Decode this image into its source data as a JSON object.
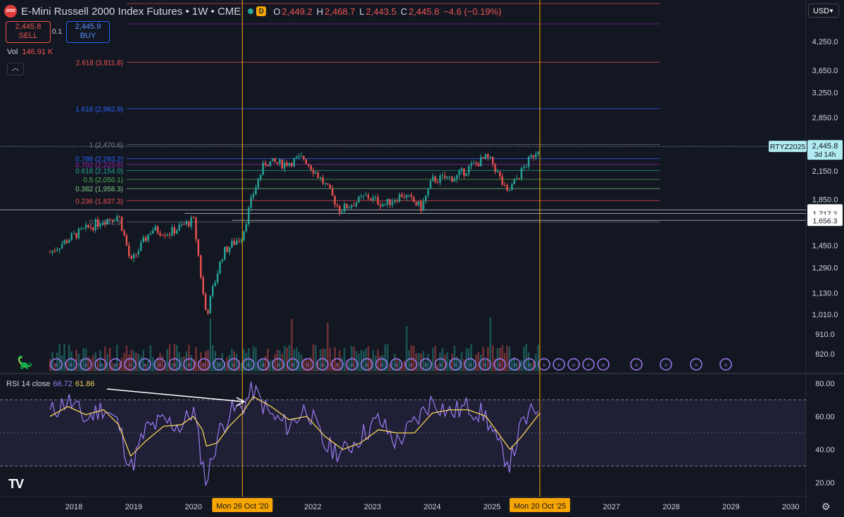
{
  "header": {
    "logo_text": "2000",
    "title": "E-Mini Russell 2000 Index Futures • 1W • CME",
    "badge": "D",
    "open_label": "O",
    "open": "2,449.2",
    "high_label": "H",
    "high": "2,468.7",
    "low_label": "L",
    "low": "2,443.5",
    "close_label": "C",
    "close": "2,445.8",
    "change": "−4.6 (−0.19%)"
  },
  "trade": {
    "sell_price": "2,445.8",
    "sell_label": "SELL",
    "spread": "0.1",
    "buy_price": "2,445.9",
    "buy_label": "BUY"
  },
  "volume": {
    "label": "Vol",
    "value": "146.91 K"
  },
  "currency": "USD",
  "rsi": {
    "label": "RSI 14 close",
    "value": "66.72",
    "ma_value": "61.86"
  },
  "colors": {
    "background": "#131722",
    "up": "#26a69a",
    "down": "#ef5350",
    "rsi": "#7e57c2",
    "rsi_ma": "#f5d35a",
    "highlight": "#f7a600"
  },
  "chart_data": [
    {
      "type": "candlestick",
      "price_axis": [
        "4,250.0",
        "3,650.0",
        "3,250.0",
        "2,850.0",
        "2,150.0",
        "1,850.0",
        "1,450.0",
        "1,290.0",
        "1,130.0",
        "1,010.0",
        "910.0",
        "820.0"
      ],
      "price_axis_values": [
        4250,
        3650,
        3250,
        2850,
        2150,
        1850,
        1450,
        1290,
        1130,
        1010,
        910,
        820
      ],
      "scale": "log",
      "time_axis": [
        "2018",
        "2019",
        "2020",
        "2022",
        "2023",
        "2024",
        "2025",
        "2027",
        "2028",
        "2029",
        "2030"
      ],
      "time_axis_years": [
        2018,
        2019,
        2020,
        2022,
        2023,
        2024,
        2025,
        2027,
        2028,
        2029,
        2030
      ],
      "highlight_dates": [
        "Mon 26 Oct '20",
        "Mon 20 Oct '25"
      ],
      "highlight_date_years": [
        2020.82,
        2025.8
      ],
      "fib_levels": [
        {
          "label": "2.618 (3,811.8)",
          "price": 3811.8,
          "color": "#ef5350"
        },
        {
          "label": "1.618 (2,982.9)",
          "price": 2982.9,
          "color": "#2962ff"
        },
        {
          "label": "1 (2,470.6)",
          "price": 2470.6,
          "color": "#787b86"
        },
        {
          "label": "0.786 (2,293.2)",
          "price": 2293.2,
          "color": "#2962ff"
        },
        {
          "label": "0.702 (2,223.6)",
          "price": 2223.6,
          "color": "#9c27b0"
        },
        {
          "label": "0.618 (2,154.0)",
          "price": 2154.0,
          "color": "#26a69a"
        },
        {
          "label": "0.5 (2,056.1)",
          "price": 2056.1,
          "color": "#4caf50"
        },
        {
          "label": "0.382 (1,958.3)",
          "price": 1958.3,
          "color": "#81c784"
        },
        {
          "label": "0.236 (1,837.3)",
          "price": 1837.3,
          "color": "#ef5350"
        },
        {
          "label": "0 (1,641.9)",
          "price": 1641.9,
          "color": "#787b86"
        }
      ],
      "horizontal_levels": [
        "1,750.4",
        "1,717.2",
        "1,656.3"
      ],
      "horizontal_level_values": [
        1750.4,
        1717.2,
        1656.3
      ],
      "symbol_tag": "RTYZ2025",
      "last_price": "2,445.8",
      "last_price_value": 2445.8,
      "countdown": "3d 14h",
      "price_series": {
        "years": [
          2017.6,
          2018.0,
          2018.5,
          2018.75,
          2018.95,
          2019.3,
          2019.6,
          2020.0,
          2020.15,
          2020.22,
          2020.5,
          2020.82,
          2021.0,
          2021.2,
          2021.5,
          2021.85,
          2022.2,
          2022.45,
          2022.7,
          2022.9,
          2023.2,
          2023.5,
          2023.82,
          2024.0,
          2024.4,
          2024.6,
          2024.9,
          2025.0,
          2025.25,
          2025.5,
          2025.8
        ],
        "close": [
          1400,
          1530,
          1660,
          1700,
          1320,
          1580,
          1550,
          1660,
          1150,
          1000,
          1400,
          1530,
          1900,
          2250,
          2230,
          2300,
          2000,
          1750,
          1820,
          1880,
          1800,
          1900,
          1770,
          2050,
          2080,
          2180,
          2300,
          2250,
          1900,
          2150,
          2450
        ]
      }
    },
    {
      "type": "line",
      "title": "RSI 14 close",
      "y_axis": [
        "80.00",
        "60.00",
        "40.00",
        "20.00"
      ],
      "y_axis_values": [
        80,
        60,
        40,
        20
      ],
      "band": [
        30,
        70
      ],
      "years": [
        2017.6,
        2017.9,
        2018.2,
        2018.5,
        2018.75,
        2018.95,
        2019.2,
        2019.5,
        2019.8,
        2020.0,
        2020.15,
        2020.22,
        2020.4,
        2020.6,
        2020.82,
        2021.0,
        2021.3,
        2021.6,
        2021.9,
        2022.2,
        2022.5,
        2022.8,
        2023.1,
        2023.4,
        2023.7,
        2024.0,
        2024.3,
        2024.6,
        2024.9,
        2025.1,
        2025.3,
        2025.5,
        2025.8
      ],
      "rsi": [
        62,
        70,
        58,
        66,
        55,
        28,
        52,
        57,
        54,
        64,
        32,
        20,
        48,
        62,
        66,
        76,
        60,
        54,
        66,
        42,
        38,
        48,
        58,
        44,
        56,
        70,
        62,
        66,
        60,
        42,
        32,
        55,
        67
      ],
      "rsi_ma": [
        60,
        66,
        61,
        64,
        55,
        36,
        45,
        54,
        55,
        60,
        52,
        42,
        44,
        54,
        62,
        72,
        66,
        58,
        60,
        48,
        40,
        44,
        52,
        50,
        50,
        62,
        64,
        64,
        60,
        50,
        40,
        48,
        62
      ]
    }
  ]
}
